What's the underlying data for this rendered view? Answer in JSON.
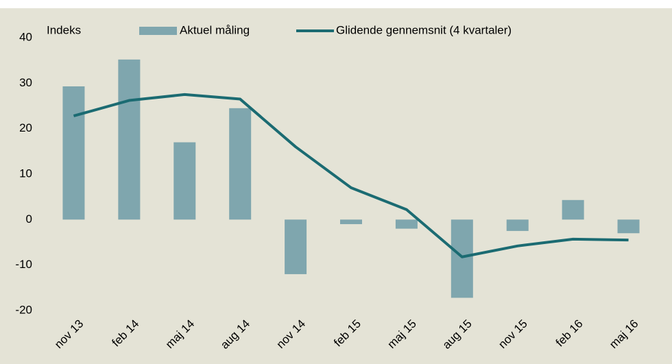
{
  "chart_data": {
    "type": "bar_line",
    "y_axis_label": "Indeks",
    "categories": [
      "nov 13",
      "feb 14",
      "maj 14",
      "aug 14",
      "nov 14",
      "feb 15",
      "maj 15",
      "aug 15",
      "nov 15",
      "feb 16",
      "maj 16"
    ],
    "series": [
      {
        "name": "Aktuel måling",
        "type": "bar",
        "color": "#7fa6ae",
        "values": [
          29.3,
          35.2,
          17,
          24.5,
          -12,
          -1,
          -2,
          -17.2,
          -2.5,
          4.3,
          -3
        ]
      },
      {
        "name": "Glidende gennemsnit (4 kvartaler)",
        "type": "line",
        "color": "#1b6b72",
        "values": [
          22.8,
          26.2,
          27.5,
          26.5,
          16,
          7,
          2.2,
          -8.2,
          -5.8,
          -4.3,
          -4.5
        ]
      }
    ],
    "ylim": [
      -20,
      40
    ],
    "yticks": [
      -20,
      -10,
      0,
      10,
      20,
      30,
      40
    ],
    "grid": false
  }
}
